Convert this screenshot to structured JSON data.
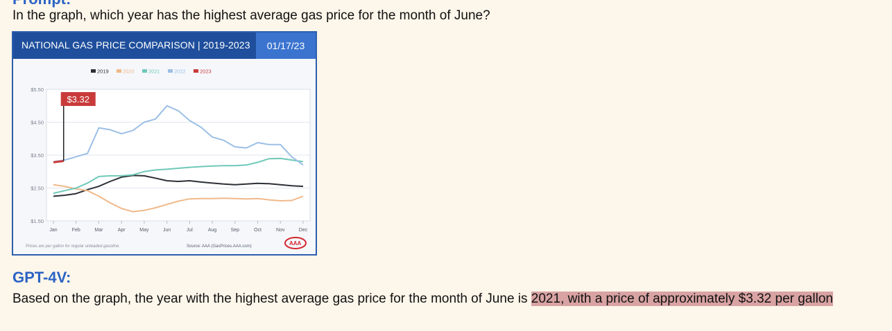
{
  "prompt": {
    "header_partial": "Prompt:",
    "question": "In the graph, which year has the highest average gas price for the month of June?"
  },
  "chart_card": {
    "title": "NATIONAL GAS PRICE COMPARISON | 2019-2023",
    "date": "01/17/23",
    "callout_label": "$3.32",
    "footer_left": "Prices are per gallon for regular unleaded gasoline.",
    "footer_source": "Source: AAA (GasPrices.AAA.com)",
    "logo_text": "AAA"
  },
  "chart_data": {
    "type": "line",
    "title": "NATIONAL GAS PRICE COMPARISON | 2019-2023",
    "x_categories": [
      "Jan",
      "Feb",
      "Mar",
      "Apr",
      "May",
      "Jun",
      "Jul",
      "Aug",
      "Sep",
      "Oct",
      "Nov",
      "Dec"
    ],
    "y_ticks": [
      "$5.50",
      "$4.50",
      "$3.50",
      "$2.50",
      "$1.50"
    ],
    "y_tick_values": [
      5.5,
      4.5,
      3.5,
      2.5,
      1.5
    ],
    "ylim": [
      1.5,
      5.5
    ],
    "grid": true,
    "legend_position": "top-center",
    "series": [
      {
        "name": "2019",
        "color": "#2c2f36",
        "points": [
          [
            0,
            2.25
          ],
          [
            0.5,
            2.28
          ],
          [
            1,
            2.33
          ],
          [
            1.5,
            2.45
          ],
          [
            2,
            2.55
          ],
          [
            2.5,
            2.7
          ],
          [
            3,
            2.83
          ],
          [
            3.5,
            2.88
          ],
          [
            4,
            2.87
          ],
          [
            4.5,
            2.8
          ],
          [
            5,
            2.72
          ],
          [
            5.5,
            2.7
          ],
          [
            6,
            2.72
          ],
          [
            6.5,
            2.68
          ],
          [
            7,
            2.65
          ],
          [
            7.5,
            2.62
          ],
          [
            8,
            2.6
          ],
          [
            8.5,
            2.62
          ],
          [
            9,
            2.64
          ],
          [
            9.5,
            2.63
          ],
          [
            10,
            2.6
          ],
          [
            10.5,
            2.57
          ],
          [
            11,
            2.55
          ]
        ]
      },
      {
        "name": "2020",
        "color": "#f0b98a",
        "points": [
          [
            0,
            2.6
          ],
          [
            0.5,
            2.55
          ],
          [
            1,
            2.47
          ],
          [
            1.5,
            2.42
          ],
          [
            2,
            2.25
          ],
          [
            2.5,
            2.05
          ],
          [
            3,
            1.88
          ],
          [
            3.5,
            1.78
          ],
          [
            4,
            1.82
          ],
          [
            4.5,
            1.9
          ],
          [
            5,
            2.0
          ],
          [
            5.5,
            2.1
          ],
          [
            6,
            2.17
          ],
          [
            6.5,
            2.18
          ],
          [
            7,
            2.18
          ],
          [
            7.5,
            2.19
          ],
          [
            8,
            2.18
          ],
          [
            8.5,
            2.17
          ],
          [
            9,
            2.18
          ],
          [
            9.5,
            2.14
          ],
          [
            10,
            2.11
          ],
          [
            10.5,
            2.12
          ],
          [
            11,
            2.25
          ]
        ]
      },
      {
        "name": "2021",
        "color": "#6fc8b8",
        "points": [
          [
            0,
            2.34
          ],
          [
            0.5,
            2.42
          ],
          [
            1,
            2.5
          ],
          [
            1.5,
            2.65
          ],
          [
            2,
            2.85
          ],
          [
            2.5,
            2.87
          ],
          [
            3,
            2.87
          ],
          [
            3.5,
            2.9
          ],
          [
            4,
            3.0
          ],
          [
            4.5,
            3.05
          ],
          [
            5,
            3.07
          ],
          [
            5.5,
            3.1
          ],
          [
            6,
            3.13
          ],
          [
            6.5,
            3.15
          ],
          [
            7,
            3.17
          ],
          [
            7.5,
            3.18
          ],
          [
            8,
            3.18
          ],
          [
            8.5,
            3.2
          ],
          [
            9,
            3.28
          ],
          [
            9.5,
            3.39
          ],
          [
            10,
            3.4
          ],
          [
            10.5,
            3.35
          ],
          [
            11,
            3.3
          ]
        ]
      },
      {
        "name": "2022",
        "color": "#9bbfe6",
        "points": [
          [
            0,
            3.3
          ],
          [
            0.5,
            3.35
          ],
          [
            1,
            3.45
          ],
          [
            1.5,
            3.55
          ],
          [
            2,
            4.33
          ],
          [
            2.5,
            4.27
          ],
          [
            3,
            4.15
          ],
          [
            3.5,
            4.25
          ],
          [
            4,
            4.5
          ],
          [
            4.5,
            4.6
          ],
          [
            5,
            5.0
          ],
          [
            5.5,
            4.85
          ],
          [
            6,
            4.55
          ],
          [
            6.5,
            4.35
          ],
          [
            7,
            4.05
          ],
          [
            7.5,
            3.95
          ],
          [
            8,
            3.75
          ],
          [
            8.5,
            3.72
          ],
          [
            9,
            3.88
          ],
          [
            9.5,
            3.82
          ],
          [
            10,
            3.82
          ],
          [
            10.5,
            3.45
          ],
          [
            11,
            3.2
          ]
        ]
      },
      {
        "name": "2023",
        "color": "#c93b3b",
        "points": [
          [
            0,
            3.28
          ],
          [
            0.2,
            3.3
          ],
          [
            0.45,
            3.32
          ]
        ]
      }
    ]
  },
  "answer": {
    "label": "GPT-4V:",
    "text_plain": "Based on the graph, the year with the highest average gas price for the month of June is ",
    "text_highlight": "2021, with a price of approximately $3.32 per gallon"
  }
}
